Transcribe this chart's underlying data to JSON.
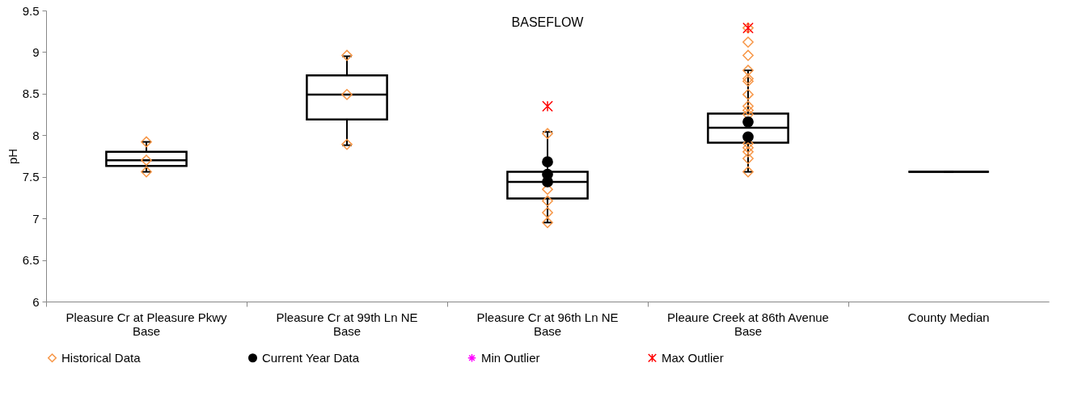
{
  "chart_data": {
    "type": "box",
    "title": "BASEFLOW",
    "ylabel": "pH",
    "categories": [
      "Pleasure Cr at Pleasure Pkwy Base",
      "Pleasure Cr at 99th Ln NE Base",
      "Pleasure Cr at 96th Ln NE Base",
      "Pleaure Creek at 86th Avenue Base",
      "County Median"
    ],
    "boxes": [
      {
        "low": 7.56,
        "q1": 7.63,
        "median": 7.7,
        "q3": 7.8,
        "high": 7.92
      },
      {
        "low": 7.88,
        "q1": 8.19,
        "median": 8.49,
        "q3": 8.72,
        "high": 8.95
      },
      {
        "low": 6.95,
        "q1": 7.24,
        "median": 7.44,
        "q3": 7.56,
        "high": 8.04
      },
      {
        "low": 7.56,
        "q1": 7.91,
        "median": 8.09,
        "q3": 8.26,
        "high": 8.78
      },
      {
        "low": 7.56,
        "q1": 7.56,
        "median": 7.56,
        "q3": 7.56,
        "high": 7.56
      }
    ],
    "series": [
      {
        "name": "Historical Data",
        "type": "scatter",
        "marker": "diamond",
        "color": "#f79646",
        "x": [
          "Pleasure Cr at Pleasure Pkwy Base",
          "Pleasure Cr at Pleasure Pkwy Base",
          "Pleasure Cr at Pleasure Pkwy Base",
          "Pleasure Cr at 99th Ln NE Base",
          "Pleasure Cr at 99th Ln NE Base",
          "Pleasure Cr at 99th Ln NE Base",
          "Pleasure Cr at 96th Ln NE Base",
          "Pleasure Cr at 96th Ln NE Base",
          "Pleasure Cr at 96th Ln NE Base",
          "Pleasure Cr at 96th Ln NE Base",
          "Pleasure Cr at 96th Ln NE Base",
          "Pleaure Creek at 86th Avenue Base",
          "Pleaure Creek at 86th Avenue Base",
          "Pleaure Creek at 86th Avenue Base",
          "Pleaure Creek at 86th Avenue Base",
          "Pleaure Creek at 86th Avenue Base",
          "Pleaure Creek at 86th Avenue Base",
          "Pleaure Creek at 86th Avenue Base",
          "Pleaure Creek at 86th Avenue Base",
          "Pleaure Creek at 86th Avenue Base",
          "Pleaure Creek at 86th Avenue Base",
          "Pleaure Creek at 86th Avenue Base",
          "Pleaure Creek at 86th Avenue Base",
          "Pleaure Creek at 86th Avenue Base",
          "Pleaure Creek at 86th Avenue Base",
          "Pleaure Creek at 86th Avenue Base"
        ],
        "values": [
          7.92,
          7.7,
          7.56,
          8.96,
          8.49,
          7.89,
          8.02,
          7.35,
          7.21,
          7.07,
          6.95,
          9.29,
          9.12,
          8.96,
          8.78,
          8.68,
          8.65,
          8.49,
          8.35,
          8.3,
          8.25,
          7.9,
          7.85,
          7.8,
          7.72,
          7.56
        ]
      },
      {
        "name": "Current Year Data",
        "type": "scatter",
        "marker": "circle",
        "color": "#000000",
        "x": [
          "Pleasure Cr at 96th Ln NE Base",
          "Pleasure Cr at 96th Ln NE Base",
          "Pleasure Cr at 96th Ln NE Base",
          "Pleaure Creek at 86th Avenue Base",
          "Pleaure Creek at 86th Avenue Base"
        ],
        "values": [
          7.68,
          7.53,
          7.44,
          8.16,
          7.98
        ]
      },
      {
        "name": "Min Outlier",
        "type": "scatter",
        "marker": "star",
        "color": "#ff00ff",
        "values": [
          null,
          null,
          null,
          null,
          null
        ]
      },
      {
        "name": "Max Outlier",
        "type": "scatter",
        "marker": "cross",
        "color": "#ff0000",
        "x": [
          "Pleasure Cr at 96th Ln NE Base",
          "Pleaure Creek at 86th Avenue Base"
        ],
        "values": [
          8.35,
          9.29
        ]
      }
    ],
    "ylim": [
      6,
      9.5
    ],
    "yticks": [
      6,
      6.5,
      7,
      7.5,
      8,
      8.5,
      9,
      9.5
    ],
    "color": "#000000",
    "grid": false,
    "legend": "bottom"
  }
}
